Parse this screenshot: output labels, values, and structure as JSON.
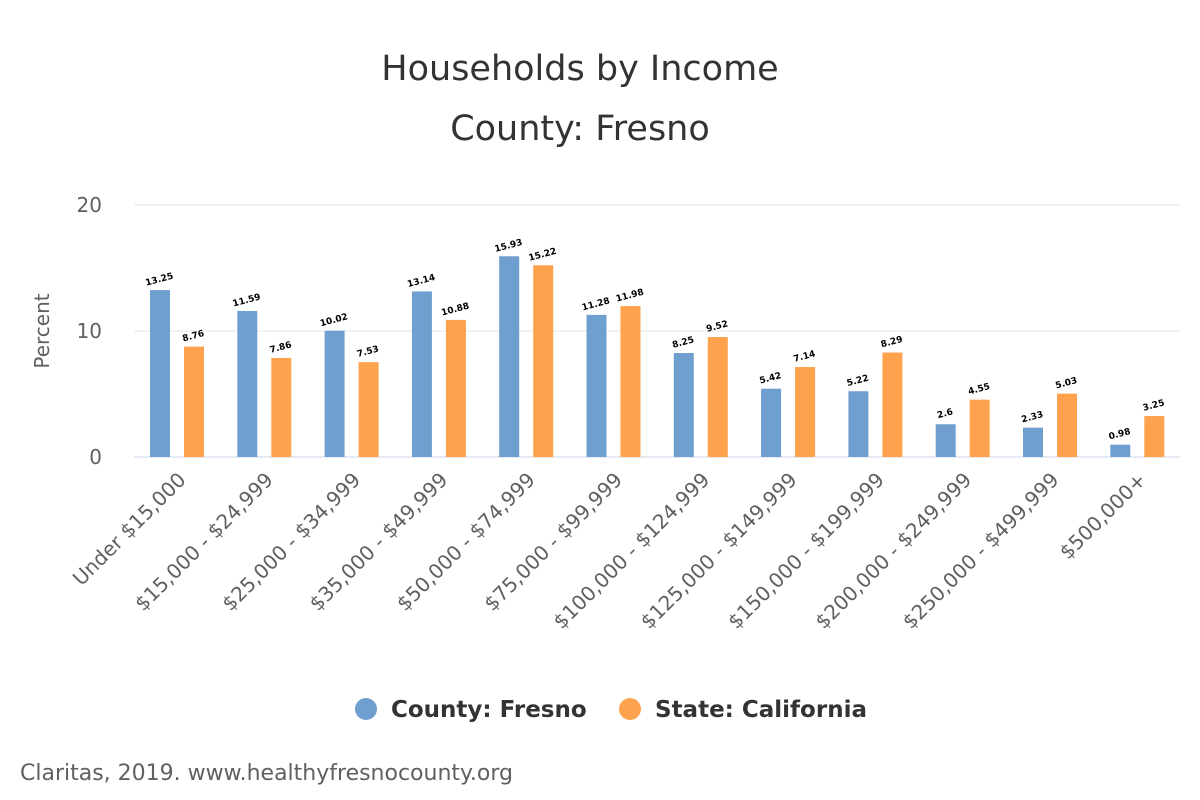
{
  "chart_data": {
    "type": "bar",
    "title": "Households by Income",
    "subtitle": "County: Fresno",
    "xlabel": "",
    "ylabel": "Percent",
    "ylim": [
      0,
      20
    ],
    "yticks": [
      0,
      10,
      20
    ],
    "grid": true,
    "legend_position": "bottom",
    "categories": [
      "Under $15,000",
      "$15,000 - $24,999",
      "$25,000 - $34,999",
      "$35,000 - $49,999",
      "$50,000 - $74,999",
      "$75,000 - $99,999",
      "$100,000 - $124,999",
      "$125,000 - $149,999",
      "$150,000 - $199,999",
      "$200,000 - $249,999",
      "$250,000 - $499,999",
      "$500,000+"
    ],
    "series": [
      {
        "name": "County: Fresno",
        "color": "#6f9fcf",
        "values": [
          13.25,
          11.59,
          10.02,
          13.14,
          15.93,
          11.28,
          8.25,
          5.42,
          5.22,
          2.6,
          2.33,
          0.98
        ]
      },
      {
        "name": "State: California",
        "color": "#ffa24d",
        "values": [
          8.76,
          7.86,
          7.53,
          10.88,
          15.22,
          11.98,
          9.52,
          7.14,
          8.29,
          4.55,
          5.03,
          3.25
        ]
      }
    ]
  },
  "credit": "Claritas, 2019. www.healthyfresnocounty.org"
}
